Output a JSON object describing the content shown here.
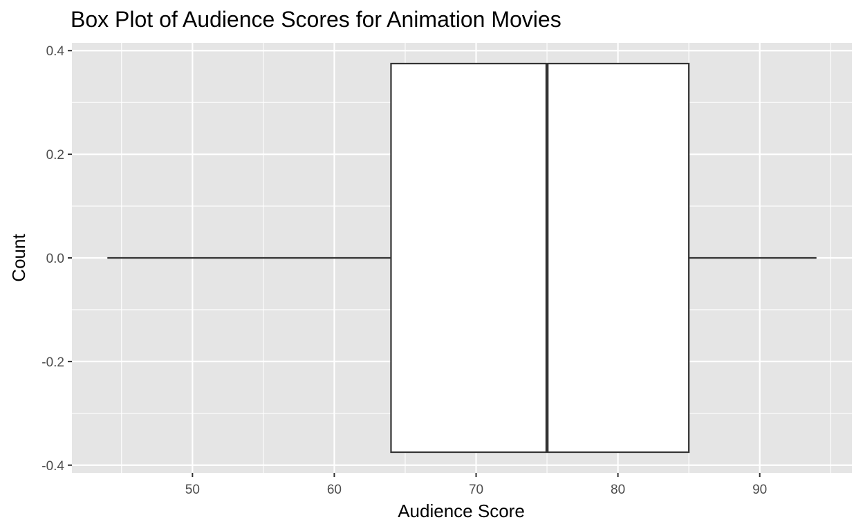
{
  "chart_data": {
    "type": "boxplot",
    "title": "Box Plot of Audience Scores for Animation Movies",
    "xlabel": "Audience Score",
    "ylabel": "Count",
    "orientation": "horizontal",
    "xlim": [
      41.5,
      96.5
    ],
    "ylim": [
      -0.415,
      0.415
    ],
    "x_ticks": [
      50,
      60,
      70,
      80,
      90
    ],
    "x_tick_labels": [
      "50",
      "60",
      "70",
      "80",
      "90"
    ],
    "y_ticks": [
      0.4,
      0.2,
      0.0,
      -0.2,
      -0.4
    ],
    "y_tick_labels": [
      "0.4",
      "0.2",
      "0.0",
      "-0.2",
      "-0.4"
    ],
    "grid": true,
    "box": {
      "whisker_low": 44,
      "q1": 64,
      "median": 75,
      "q3": 85,
      "whisker_high": 94,
      "y_center": 0.0,
      "y_half_height": 0.375
    },
    "colors": {
      "panel_background": "#e5e5e5",
      "grid": "#ffffff",
      "box_fill": "#ffffff",
      "box_line": "#333333",
      "tick_text": "#4d4d4d"
    }
  }
}
